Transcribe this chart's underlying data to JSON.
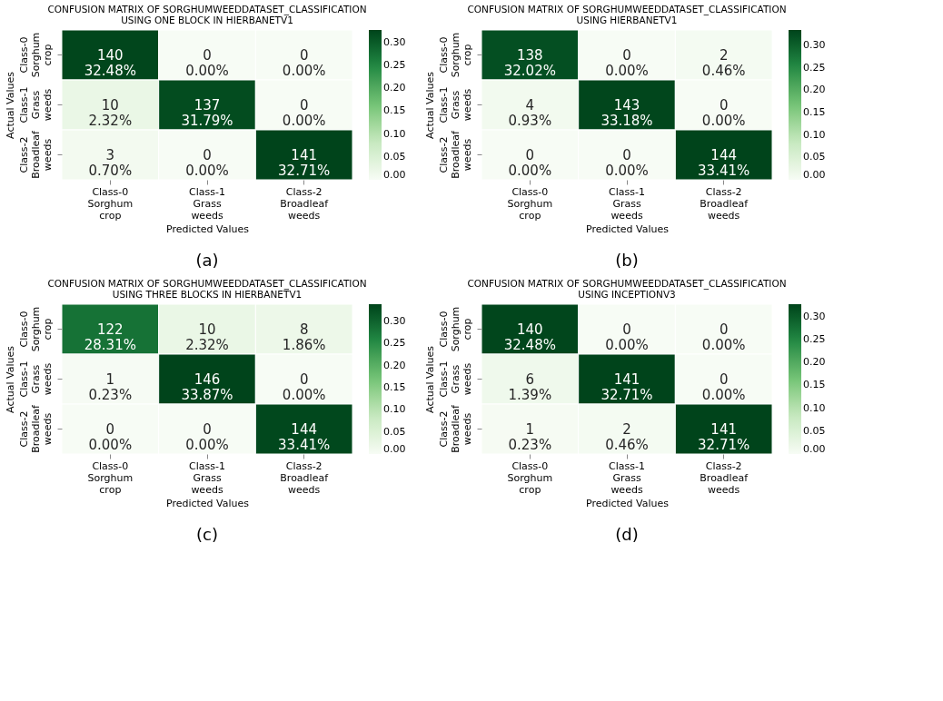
{
  "chart_data": [
    {
      "type": "heatmap",
      "title": "CONFUSION MATRIX OF SORGHUMWEEDDATASET_CLASSIFICATION USING ONE BLOCK IN HIERBANETV1",
      "xlabel": "Predicted Values",
      "ylabel": "Actual Values",
      "categories": [
        "Class-0 Sorghum crop",
        "Class-1 Grass weeds",
        "Class-2 Broadleaf weeds"
      ],
      "y_categories": [
        "Class-0 Sorghum crop",
        "Class-1 Grass weeds",
        "Class-2 Broadleaf weeds"
      ],
      "cells": [
        [
          0.3248,
          0.0,
          0.0
        ],
        [
          0.0232,
          0.3179,
          0.0
        ],
        [
          0.007,
          0.0,
          0.3271
        ]
      ],
      "cell_labels": [
        [
          "140\n32.48%",
          "0\n0.00%",
          "0\n0.00%"
        ],
        [
          "10\n2.32%",
          "137\n31.79%",
          "0\n0.00%"
        ],
        [
          "3\n0.70%",
          "0\n0.00%",
          "141\n32.71%"
        ]
      ],
      "clim": [
        0,
        0.3271
      ],
      "cticks": [
        {
          "value": 0,
          "label": "0.00"
        },
        {
          "value": 0.05,
          "label": "0.05"
        },
        {
          "value": 0.1,
          "label": "0.10"
        },
        {
          "value": 0.15,
          "label": "0.15"
        },
        {
          "value": 0.2,
          "label": "0.20"
        },
        {
          "value": 0.25,
          "label": "0.25"
        },
        {
          "value": 0.3,
          "label": "0.30"
        }
      ],
      "colors": [
        "#f7fcf5",
        "#c7e9c0",
        "#74c476",
        "#238b45",
        "#00441b"
      ],
      "annotations": [
        "(a)"
      ]
    },
    {
      "type": "heatmap",
      "title": "CONFUSION MATRIX OF SORGHUMWEEDDATASET_CLASSIFICATION USING HIERBANETV1",
      "xlabel": "Predicted Values",
      "ylabel": "Actual Values",
      "categories": [
        "Class-0 Sorghum crop",
        "Class-1 Grass weeds",
        "Class-2 Broadleaf weeds"
      ],
      "y_categories": [
        "Class-0 Sorghum crop",
        "Class-1 Grass weeds",
        "Class-2 Broadleaf weeds"
      ],
      "cells": [
        [
          0.3202,
          0.0,
          0.0046
        ],
        [
          0.0093,
          0.3318,
          0.0
        ],
        [
          0.0,
          0.0,
          0.3341
        ]
      ],
      "cell_labels": [
        [
          "138\n32.02%",
          "0\n0.00%",
          "2\n0.46%"
        ],
        [
          "4\n0.93%",
          "143\n33.18%",
          "0\n0.00%"
        ],
        [
          "0\n0.00%",
          "0\n0.00%",
          "144\n33.41%"
        ]
      ],
      "clim": [
        0,
        0.3341
      ],
      "cticks": [
        {
          "value": 0,
          "label": "0.00"
        },
        {
          "value": 0.05,
          "label": "0.05"
        },
        {
          "value": 0.1,
          "label": "0.10"
        },
        {
          "value": 0.15,
          "label": "0.15"
        },
        {
          "value": 0.2,
          "label": "0.20"
        },
        {
          "value": 0.25,
          "label": "0.25"
        },
        {
          "value": 0.3,
          "label": "0.30"
        }
      ],
      "colors": [
        "#f7fcf5",
        "#c7e9c0",
        "#74c476",
        "#238b45",
        "#00441b"
      ],
      "annotations": [
        "(b)"
      ]
    },
    {
      "type": "heatmap",
      "title": "CONFUSION MATRIX OF SORGHUMWEEDDATASET_CLASSIFICATION USING THREE BLOCKS IN HIERBANETV1",
      "xlabel": "Predicted Values",
      "ylabel": "Actual Values",
      "categories": [
        "Class-0 Sorghum crop",
        "Class-1 Grass weeds",
        "Class-2 Broadleaf weeds"
      ],
      "y_categories": [
        "Class-0 Sorghum crop",
        "Class-1 Grass weeds",
        "Class-2 Broadleaf weeds"
      ],
      "cells": [
        [
          0.2831,
          0.0232,
          0.0186
        ],
        [
          0.0023,
          0.3387,
          0.0
        ],
        [
          0.0,
          0.0,
          0.3341
        ]
      ],
      "cell_labels": [
        [
          "122\n28.31%",
          "10\n2.32%",
          "8\n1.86%"
        ],
        [
          "1\n0.23%",
          "146\n33.87%",
          "0\n0.00%"
        ],
        [
          "0\n0.00%",
          "0\n0.00%",
          "144\n33.41%"
        ]
      ],
      "clim": [
        0,
        0.3387
      ],
      "cticks": [
        {
          "value": 0,
          "label": "0.00"
        },
        {
          "value": 0.05,
          "label": "0.05"
        },
        {
          "value": 0.1,
          "label": "0.10"
        },
        {
          "value": 0.15,
          "label": "0.15"
        },
        {
          "value": 0.2,
          "label": "0.20"
        },
        {
          "value": 0.25,
          "label": "0.25"
        },
        {
          "value": 0.3,
          "label": "0.30"
        }
      ],
      "colors": [
        "#f7fcf5",
        "#c7e9c0",
        "#74c476",
        "#238b45",
        "#00441b"
      ],
      "annotations": [
        "(c)"
      ]
    },
    {
      "type": "heatmap",
      "title": "CONFUSION MATRIX OF SORGHUMWEEDDATASET_CLASSIFICATION USING INCEPTIONV3",
      "xlabel": "Predicted Values",
      "ylabel": "Actual Values",
      "categories": [
        "Class-0 Sorghum crop",
        "Class-1 Grass weeds",
        "Class-2 Broadleaf weeds"
      ],
      "y_categories": [
        "Class-0 Sorghum crop",
        "Class-1 Grass weeds",
        "Class-2 Broadleaf weeds"
      ],
      "cells": [
        [
          0.3248,
          0.0,
          0.0
        ],
        [
          0.0139,
          0.3271,
          0.0
        ],
        [
          0.0023,
          0.0046,
          0.3271
        ]
      ],
      "cell_labels": [
        [
          "140\n32.48%",
          "0\n0.00%",
          "0\n0.00%"
        ],
        [
          "6\n1.39%",
          "141\n32.71%",
          "0\n0.00%"
        ],
        [
          "1\n0.23%",
          "2\n0.46%",
          "141\n32.71%"
        ]
      ],
      "clim": [
        0,
        0.3271
      ],
      "cticks": [
        {
          "value": 0,
          "label": "0.00"
        },
        {
          "value": 0.05,
          "label": "0.05"
        },
        {
          "value": 0.1,
          "label": "0.10"
        },
        {
          "value": 0.15,
          "label": "0.15"
        },
        {
          "value": 0.2,
          "label": "0.20"
        },
        {
          "value": 0.25,
          "label": "0.25"
        },
        {
          "value": 0.3,
          "label": "0.30"
        }
      ],
      "colors": [
        "#f7fcf5",
        "#c7e9c0",
        "#74c476",
        "#238b45",
        "#00441b"
      ],
      "annotations": [
        "(d)"
      ]
    }
  ]
}
